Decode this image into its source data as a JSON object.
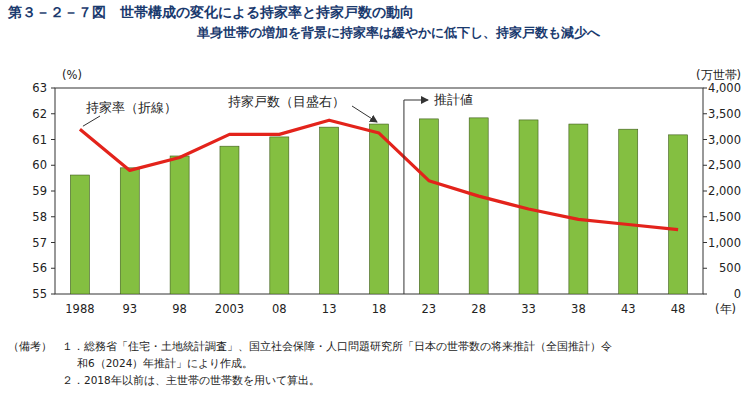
{
  "chart_data": {
    "type": "bar",
    "title": "第３－２－７図　世帯構成の変化による持家率と持家戸数の動向",
    "subtitle": "単身世帯の増加を背景に持家率は緩やかに低下し、持家戸数も減少へ",
    "categories": [
      "1988",
      "93",
      "98",
      "2003",
      "08",
      "13",
      "18",
      "23",
      "28",
      "33",
      "38",
      "43",
      "48"
    ],
    "series": [
      {
        "type": "bar",
        "axis": "y2",
        "color": "#84bf41",
        "values": [
          2310,
          2450,
          2680,
          2870,
          3050,
          3240,
          3300,
          3400,
          3420,
          3380,
          3300,
          3200,
          3090
        ]
      },
      {
        "type": "line",
        "axis": "y",
        "color": "#e3231b",
        "values": [
          61.4,
          59.8,
          60.3,
          61.2,
          61.2,
          61.75,
          61.25,
          59.4,
          58.8,
          58.3,
          57.9,
          57.7,
          57.5
        ]
      }
    ],
    "ylim": [
      55,
      63
    ],
    "yticks": [
      55,
      56,
      57,
      58,
      59,
      60,
      61,
      62,
      63
    ],
    "y2lim": [
      0,
      4000
    ],
    "y2ticks": [
      0,
      500,
      {
        "value": 1000,
        "label": "1,000"
      },
      {
        "value": 1500,
        "label": "1,500"
      },
      {
        "value": 2000,
        "label": "2,000"
      },
      {
        "value": 2500,
        "label": "2,500"
      },
      {
        "value": 3000,
        "label": "3,000"
      },
      {
        "value": 3500,
        "label": "3,500"
      },
      {
        "value": 4000,
        "label": "4,000"
      }
    ],
    "ylabel": "(%)",
    "y2label": "(万世帯)",
    "xlabel": "(年)",
    "grid": false,
    "annotations": [
      {
        "text": "持家率（折線）"
      },
      {
        "text": "持家戸数（目盛右）"
      },
      {
        "text": "推計値",
        "x": "23"
      }
    ],
    "notes_label": "（備考）",
    "notes": [
      [
        "１．総務省「住宅・土地統計調査」、国立社会保障・人口問題研究所「日本の世帯数の将来推計（全国推計）令",
        "和6（2024）年推計」により作成。"
      ],
      [
        "２．2018年以前は、主世帯の世帯数を用いて算出。"
      ]
    ]
  }
}
